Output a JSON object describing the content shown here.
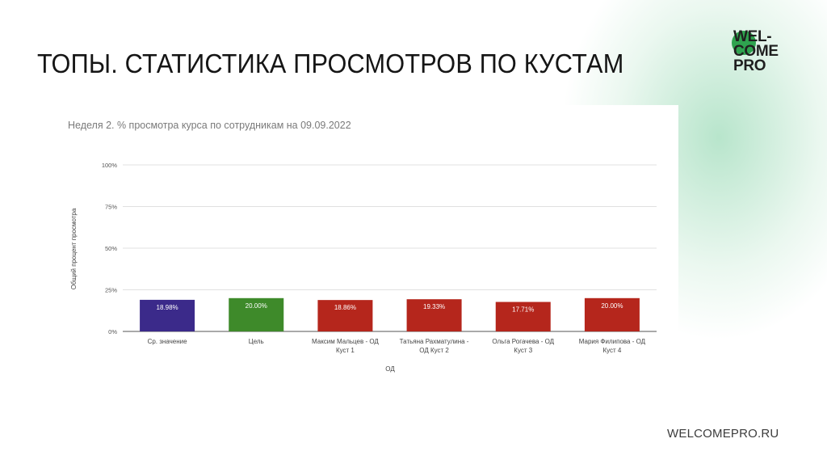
{
  "slide": {
    "title": "ТОПЫ. СТАТИСТИКА ПРОСМОТРОВ ПО КУСТАМ",
    "footer_url": "WELCOMEPRO.RU",
    "logo_lines": [
      "WEL-",
      "COME",
      "PRO"
    ]
  },
  "colors": {
    "accent_green": "#2fa34f",
    "bar_blue": "#3b2a8a",
    "bar_green": "#3e8a2a",
    "bar_red": "#b5261c"
  },
  "chart_data": {
    "type": "bar",
    "title": "Неделя 2. % просмотра курса по сотрудникам на 09.09.2022",
    "xlabel": "ОД",
    "ylabel": "Общий процент просмотра",
    "ylim": [
      0,
      100
    ],
    "yticks": [
      "0%",
      "25%",
      "50%",
      "75%",
      "100%"
    ],
    "grid": true,
    "categories": [
      [
        "Ср. значение"
      ],
      [
        "Цель"
      ],
      [
        "Максим Мальцев - ОД",
        "Куст 1"
      ],
      [
        "Татьяна Рахматулина -",
        "ОД Куст 2"
      ],
      [
        "Ольга Рогачева - ОД",
        "Куст 3"
      ],
      [
        "Мария Филипова - ОД",
        "Куст 4"
      ]
    ],
    "values": [
      18.98,
      20.0,
      18.86,
      19.33,
      17.71,
      20.0
    ],
    "value_labels": [
      "18.98%",
      "20.00%",
      "18.86%",
      "19.33%",
      "17.71%",
      "20.00%"
    ],
    "bar_colors": [
      "#3b2a8a",
      "#3e8a2a",
      "#b5261c",
      "#b5261c",
      "#b5261c",
      "#b5261c"
    ]
  }
}
